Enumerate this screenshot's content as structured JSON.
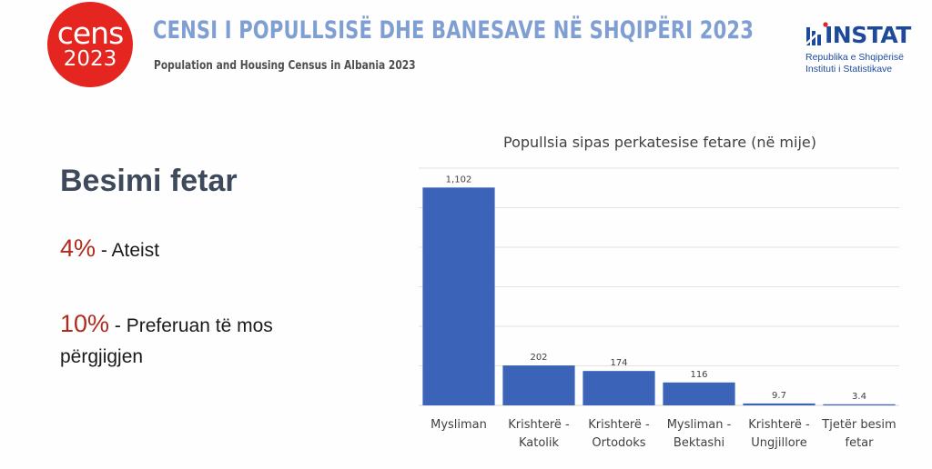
{
  "header": {
    "logo_line1": "cens",
    "logo_line2": "2023",
    "title": "CENSI I POPULLSISË DHE BANESAVE NË SHQIPËRI 2023",
    "subtitle": "Population and Housing Census in Albania 2023",
    "instat_name": "INSTAT",
    "instat_line1": "Republika e Shqipërisë",
    "instat_line2": "Instituti i Statistikave"
  },
  "left_panel": {
    "heading": "Besimi fetar",
    "stat1_pct": "4%",
    "stat1_text": " - Ateist",
    "stat2_pct": "10%",
    "stat2_text": " - Preferuan të mos përgjigjen"
  },
  "colors": {
    "bar": "#3b64b8",
    "accent_red": "#b02a1e",
    "title_blue": "#7f9fd3"
  },
  "chart_data": {
    "type": "bar",
    "title": "Popullsia sipas perkatesise fetare (në mije)",
    "categories": [
      [
        "Mysliman"
      ],
      [
        "Krishterë -",
        "Katolik"
      ],
      [
        "Krishterë -",
        "Ortodoks"
      ],
      [
        "Mysliman -",
        "Bektashi"
      ],
      [
        "Krishterë -",
        "Ungjillore"
      ],
      [
        "Tjetër besim",
        "fetar"
      ]
    ],
    "values": [
      1102,
      202,
      174,
      116,
      9.7,
      3.4
    ],
    "value_labels": [
      "1,102",
      "202",
      "174",
      "116",
      "9.7",
      "3.4"
    ],
    "ylim": [
      0,
      1200
    ],
    "grid": true,
    "xlabel": "",
    "ylabel": ""
  }
}
